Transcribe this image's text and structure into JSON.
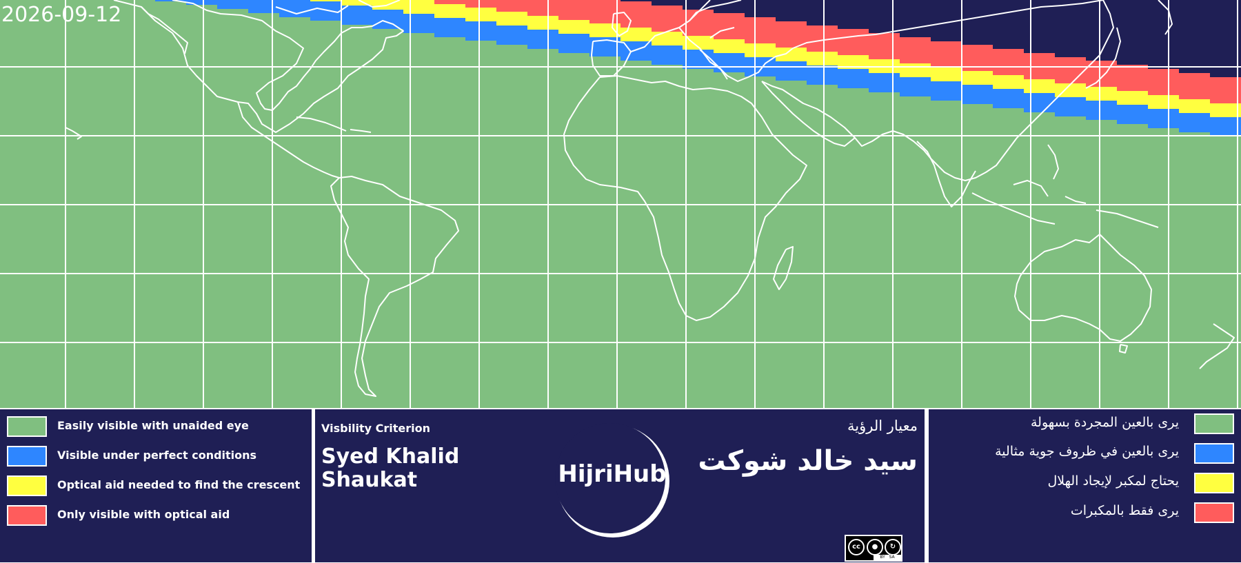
{
  "map": {
    "date": "2026-09-12",
    "colors": {
      "land_background": "#80bf80",
      "easy": "#80bf80",
      "perfect": "#2e86ff",
      "optical_needed": "#ffff40",
      "optical_only": "#ff5c5c",
      "not_visible": "#1f1f55",
      "grid": "#ffffff",
      "coastline": "#ffffff"
    }
  },
  "legend_en": {
    "items": [
      {
        "label": "Easily visible with unaided eye",
        "color": "#80bf80"
      },
      {
        "label": "Visible under perfect conditions",
        "color": "#2e86ff"
      },
      {
        "label": "Optical aid needed to find the crescent",
        "color": "#ffff40"
      },
      {
        "label": "Only visible with optical aid",
        "color": "#ff5c5c"
      }
    ]
  },
  "criterion": {
    "label": "Visbility Criterion",
    "name_line1": "Syed Khalid",
    "name_line2": "Shaukat",
    "label_ar": "معيار الرؤية",
    "name_ar": "سيد خالد شوكت"
  },
  "logo": {
    "text": "HijriHub",
    "icon": "crescent-icon"
  },
  "license": {
    "cc": "cc",
    "by": "BY",
    "sa": "SA"
  },
  "legend_ar": {
    "items": [
      {
        "label": "يرى بالعين المجردة بسهولة",
        "color": "#80bf80"
      },
      {
        "label": "يرى بالعين في ظروف جوية مثالية",
        "color": "#2e86ff"
      },
      {
        "label": "يحتاج لمكبر لإيجاد الهلال",
        "color": "#ffff40"
      },
      {
        "label": "يرى فقط بالمكبرات",
        "color": "#ff5c5c"
      }
    ]
  }
}
